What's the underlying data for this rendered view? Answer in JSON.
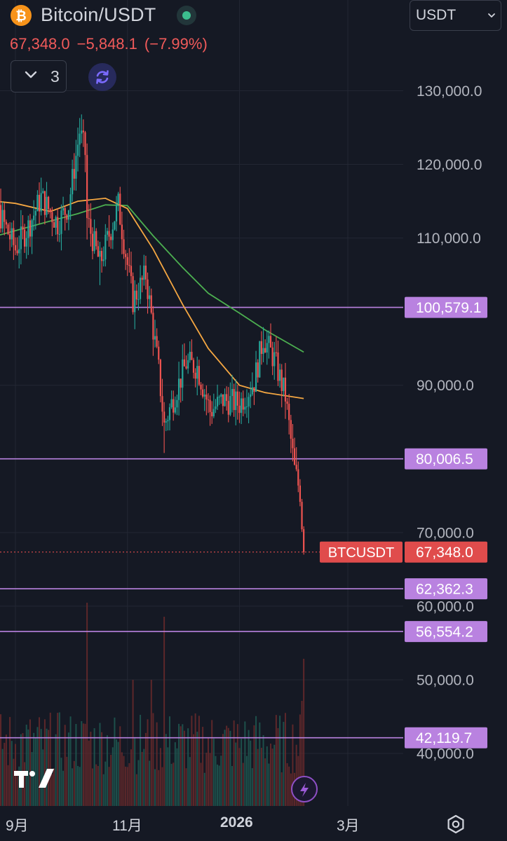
{
  "header": {
    "pair_title": "Bitcoin/USDT",
    "price": "67,348.0",
    "change": "−5,848.1",
    "change_pct": "(−7.99%)",
    "indicator_count": "3",
    "quote_currency": "USDT"
  },
  "colors": {
    "background": "#151924",
    "up": "#26a69a",
    "down": "#ef5350",
    "ma_orange": "#f5a742",
    "ma_green": "#4caf50",
    "level_line": "#b982e0",
    "current_price": "#e04c4c"
  },
  "icons": {
    "logo": "bitcoin-logo-icon",
    "status": "market-status-icon",
    "collapse": "chevron-down-icon",
    "sync": "sync-icon",
    "select": "chevron-down-icon",
    "brand": "tradingview-logo-icon",
    "flash": "lightning-icon",
    "settings": "gear-icon"
  },
  "chart_data": {
    "type": "candlestick",
    "symbol": "BTCUSDT",
    "ylim": [
      36000,
      134000
    ],
    "y_ticks": [
      "130,000.0",
      "120,000.0",
      "110,000.0",
      "90,000.0",
      "70,000.0",
      "60,000.0",
      "50,000.0",
      "40,000.0"
    ],
    "y_tick_values": [
      130000,
      120000,
      110000,
      90000,
      70000,
      60000,
      50000,
      40000
    ],
    "x_ticks": [
      "9月",
      "11月",
      "2026",
      "3月"
    ],
    "x_tick_dates": [
      "2025-09-01",
      "2025-11-01",
      "2026-01-01",
      "2026-03-01"
    ],
    "x_range": [
      "2025-08-10",
      "2026-04-15"
    ],
    "last_date": "2026-02-05",
    "current_price": {
      "value": 67348.0,
      "label": "67,348.0",
      "tag": "BTCUSDT"
    },
    "horizontal_levels": [
      {
        "value": 100579.1,
        "label": "100,579.1"
      },
      {
        "value": 80006.5,
        "label": "80,006.5"
      },
      {
        "value": 62362.3,
        "label": "62,362.3"
      },
      {
        "value": 56554.2,
        "label": "56,554.2"
      },
      {
        "value": 42119.7,
        "label": "42,119.7"
      }
    ],
    "anchors": [
      [
        "2025-08-10",
        118000
      ],
      [
        "2025-08-14",
        121000
      ],
      [
        "2025-08-22",
        114000
      ],
      [
        "2025-09-01",
        108500
      ],
      [
        "2025-09-08",
        111500
      ],
      [
        "2025-09-15",
        115500
      ],
      [
        "2025-09-24",
        112000
      ],
      [
        "2025-09-30",
        114500
      ],
      [
        "2025-10-06",
        124500
      ],
      [
        "2025-10-09",
        121500
      ],
      [
        "2025-10-10",
        112500
      ],
      [
        "2025-10-17",
        106500
      ],
      [
        "2025-10-27",
        114500
      ],
      [
        "2025-11-04",
        101500
      ],
      [
        "2025-11-11",
        105000
      ],
      [
        "2025-11-18",
        92000
      ],
      [
        "2025-11-21",
        84500
      ],
      [
        "2025-11-25",
        87500
      ],
      [
        "2025-12-03",
        93000
      ],
      [
        "2025-12-09",
        92500
      ],
      [
        "2025-12-16",
        86500
      ],
      [
        "2025-12-23",
        88000
      ],
      [
        "2026-01-01",
        87500
      ],
      [
        "2026-01-09",
        90500
      ],
      [
        "2026-01-14",
        96500
      ],
      [
        "2026-01-20",
        93500
      ],
      [
        "2026-01-26",
        88500
      ],
      [
        "2026-01-31",
        78500
      ],
      [
        "2026-02-03",
        75500
      ],
      [
        "2026-02-05",
        67348
      ]
    ],
    "ma_fast": [
      [
        "2025-08-10",
        115300
      ],
      [
        "2025-09-01",
        114700
      ],
      [
        "2025-09-20",
        113600
      ],
      [
        "2025-10-05",
        115000
      ],
      [
        "2025-10-20",
        115400
      ],
      [
        "2025-11-01",
        114000
      ],
      [
        "2025-11-15",
        108500
      ],
      [
        "2025-12-01",
        101000
      ],
      [
        "2025-12-15",
        95000
      ],
      [
        "2026-01-01",
        90000
      ],
      [
        "2026-01-15",
        89000
      ],
      [
        "2026-02-05",
        88200
      ]
    ],
    "ma_slow": [
      [
        "2025-08-10",
        109500
      ],
      [
        "2025-09-01",
        111000
      ],
      [
        "2025-09-20",
        112300
      ],
      [
        "2025-10-05",
        113300
      ],
      [
        "2025-10-20",
        114500
      ],
      [
        "2025-11-01",
        114400
      ],
      [
        "2025-11-15",
        110300
      ],
      [
        "2025-12-01",
        106000
      ],
      [
        "2025-12-15",
        102500
      ],
      [
        "2026-01-01",
        99800
      ],
      [
        "2026-01-15",
        97500
      ],
      [
        "2026-02-05",
        94500
      ]
    ]
  }
}
